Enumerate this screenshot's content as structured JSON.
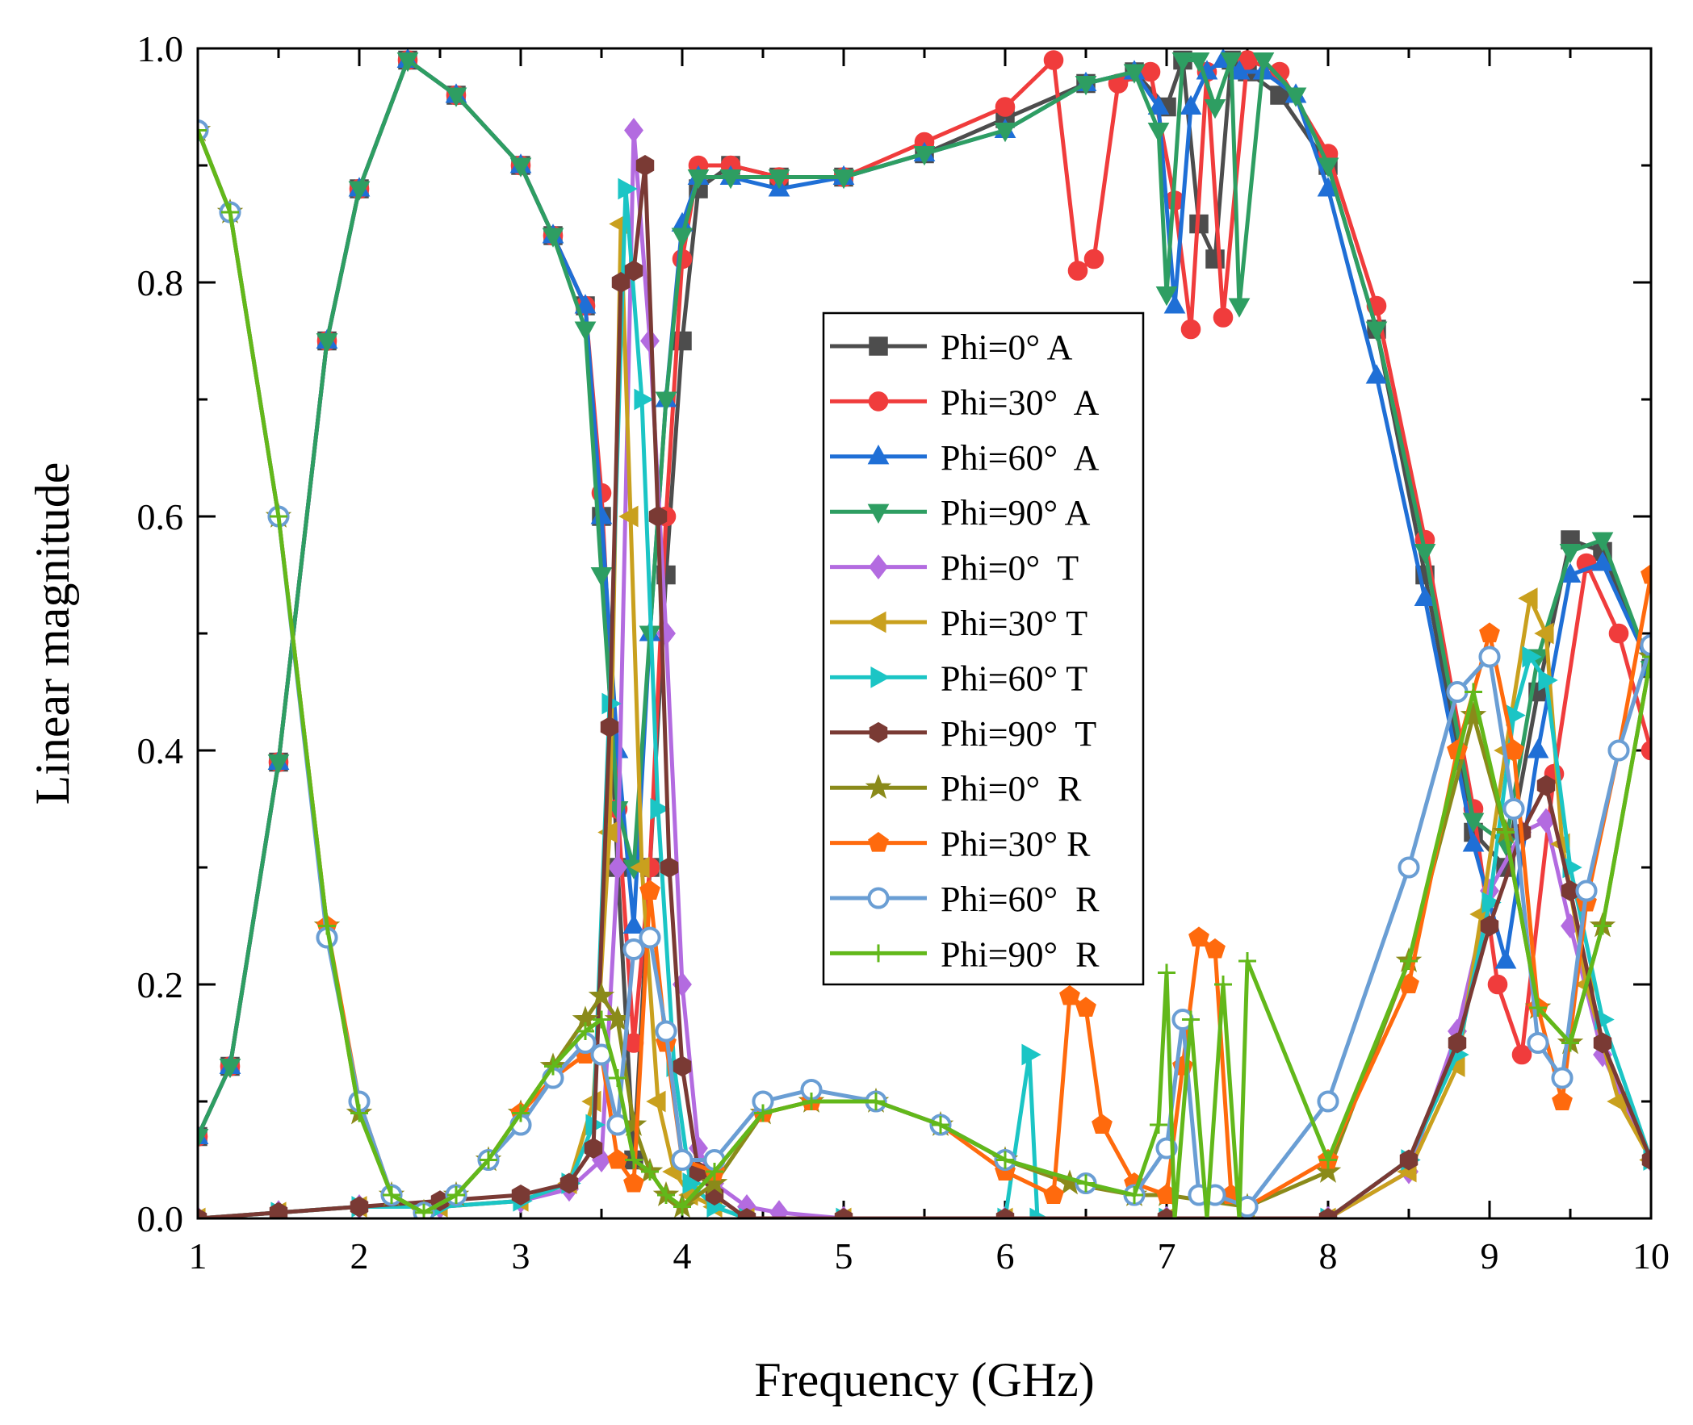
{
  "chart_data": {
    "type": "line",
    "title": "",
    "xlabel": "Frequency (GHz)",
    "ylabel": "Linear magnitude",
    "xlim": [
      1,
      10
    ],
    "ylim": [
      0,
      1.0
    ],
    "xticks": [
      "1",
      "2",
      "3",
      "4",
      "5",
      "6",
      "7",
      "8",
      "9",
      "10"
    ],
    "yticks": [
      "0.0",
      "0.2",
      "0.4",
      "0.6",
      "0.8",
      "1.0"
    ],
    "legend_position": "center",
    "series": [
      {
        "name": "Phi=0° A",
        "color": "#4d4d4d",
        "marker": "square",
        "x": [
          1.0,
          1.2,
          1.5,
          1.8,
          2.0,
          2.3,
          2.6,
          3.0,
          3.2,
          3.4,
          3.5,
          3.6,
          3.7,
          3.8,
          3.9,
          4.0,
          4.1,
          4.3,
          4.6,
          5.0,
          5.5,
          6.0,
          6.5,
          6.8,
          7.0,
          7.1,
          7.2,
          7.3,
          7.4,
          7.5,
          7.7,
          8.0,
          8.3,
          8.6,
          8.9,
          9.1,
          9.3,
          9.5,
          9.7,
          10.0
        ],
        "y": [
          0.07,
          0.13,
          0.39,
          0.75,
          0.88,
          0.99,
          0.96,
          0.9,
          0.84,
          0.78,
          0.6,
          0.3,
          0.05,
          0.3,
          0.55,
          0.75,
          0.88,
          0.9,
          0.89,
          0.89,
          0.91,
          0.94,
          0.97,
          0.98,
          0.95,
          0.99,
          0.85,
          0.82,
          0.99,
          0.98,
          0.96,
          0.9,
          0.76,
          0.55,
          0.33,
          0.3,
          0.45,
          0.58,
          0.57,
          0.47
        ]
      },
      {
        "name": "Phi=30°  A",
        "color": "#f03c3c",
        "marker": "circle",
        "x": [
          1.0,
          1.2,
          1.5,
          1.8,
          2.0,
          2.3,
          2.6,
          3.0,
          3.2,
          3.4,
          3.5,
          3.6,
          3.7,
          3.8,
          3.9,
          4.0,
          4.1,
          4.3,
          4.6,
          5.0,
          5.5,
          6.0,
          6.3,
          6.45,
          6.55,
          6.7,
          6.9,
          7.05,
          7.15,
          7.25,
          7.35,
          7.5,
          7.7,
          8.0,
          8.3,
          8.6,
          8.9,
          9.05,
          9.2,
          9.4,
          9.6,
          9.8,
          10.0
        ],
        "y": [
          0.07,
          0.13,
          0.39,
          0.75,
          0.88,
          0.99,
          0.96,
          0.9,
          0.84,
          0.78,
          0.62,
          0.35,
          0.15,
          0.3,
          0.6,
          0.82,
          0.9,
          0.9,
          0.89,
          0.89,
          0.92,
          0.95,
          0.99,
          0.81,
          0.82,
          0.97,
          0.98,
          0.87,
          0.76,
          0.98,
          0.77,
          0.99,
          0.98,
          0.91,
          0.78,
          0.58,
          0.35,
          0.2,
          0.14,
          0.38,
          0.56,
          0.5,
          0.4
        ]
      },
      {
        "name": "Phi=60°  A",
        "color": "#1f6fd6",
        "marker": "triangle-up",
        "x": [
          1.0,
          1.2,
          1.5,
          1.8,
          2.0,
          2.3,
          2.6,
          3.0,
          3.2,
          3.4,
          3.5,
          3.6,
          3.7,
          3.8,
          3.9,
          4.0,
          4.1,
          4.3,
          4.6,
          5.0,
          5.5,
          6.0,
          6.5,
          6.8,
          6.95,
          7.05,
          7.15,
          7.25,
          7.35,
          7.45,
          7.6,
          7.8,
          8.0,
          8.3,
          8.6,
          8.9,
          9.1,
          9.3,
          9.5,
          9.7,
          10.0
        ],
        "y": [
          0.07,
          0.13,
          0.39,
          0.75,
          0.88,
          0.99,
          0.96,
          0.9,
          0.84,
          0.78,
          0.6,
          0.4,
          0.25,
          0.5,
          0.7,
          0.85,
          0.89,
          0.89,
          0.88,
          0.89,
          0.91,
          0.93,
          0.97,
          0.98,
          0.95,
          0.78,
          0.95,
          0.98,
          0.99,
          0.98,
          0.98,
          0.96,
          0.88,
          0.72,
          0.53,
          0.32,
          0.22,
          0.4,
          0.55,
          0.56,
          0.47
        ]
      },
      {
        "name": "Phi=90° A",
        "color": "#2e9e62",
        "marker": "triangle-down",
        "x": [
          1.0,
          1.2,
          1.5,
          1.8,
          2.0,
          2.3,
          2.6,
          3.0,
          3.2,
          3.4,
          3.5,
          3.6,
          3.7,
          3.8,
          3.9,
          4.0,
          4.1,
          4.3,
          4.6,
          5.0,
          5.5,
          6.0,
          6.5,
          6.8,
          6.95,
          7.0,
          7.1,
          7.2,
          7.3,
          7.4,
          7.45,
          7.6,
          7.8,
          8.0,
          8.3,
          8.6,
          8.9,
          9.1,
          9.3,
          9.5,
          9.7,
          10.0
        ],
        "y": [
          0.07,
          0.13,
          0.39,
          0.75,
          0.88,
          0.99,
          0.96,
          0.9,
          0.84,
          0.76,
          0.55,
          0.35,
          0.3,
          0.5,
          0.7,
          0.84,
          0.89,
          0.89,
          0.89,
          0.89,
          0.91,
          0.93,
          0.97,
          0.98,
          0.93,
          0.79,
          0.99,
          0.99,
          0.95,
          0.99,
          0.78,
          0.99,
          0.96,
          0.9,
          0.76,
          0.57,
          0.34,
          0.32,
          0.48,
          0.57,
          0.58,
          0.47
        ]
      },
      {
        "name": "Phi=0°  T",
        "color": "#b36be0",
        "marker": "diamond",
        "x": [
          1.0,
          1.5,
          2.0,
          2.5,
          3.0,
          3.3,
          3.5,
          3.6,
          3.7,
          3.8,
          3.9,
          4.0,
          4.1,
          4.2,
          4.4,
          4.6,
          5.0,
          6.0,
          7.0,
          8.0,
          8.5,
          8.8,
          9.0,
          9.2,
          9.35,
          9.5,
          9.7,
          10.0
        ],
        "y": [
          0.0,
          0.005,
          0.01,
          0.01,
          0.015,
          0.025,
          0.05,
          0.3,
          0.93,
          0.75,
          0.5,
          0.2,
          0.06,
          0.03,
          0.01,
          0.005,
          0.0,
          0.0,
          0.0,
          0.0,
          0.04,
          0.16,
          0.28,
          0.33,
          0.34,
          0.25,
          0.14,
          0.05
        ]
      },
      {
        "name": "Phi=30° T",
        "color": "#c9a01e",
        "marker": "triangle-left",
        "x": [
          1.0,
          1.5,
          2.0,
          2.5,
          3.0,
          3.3,
          3.45,
          3.55,
          3.62,
          3.68,
          3.75,
          3.85,
          3.95,
          4.05,
          4.2,
          4.4,
          5.0,
          6.0,
          7.0,
          8.0,
          8.5,
          8.8,
          8.95,
          9.1,
          9.25,
          9.35,
          9.45,
          9.6,
          9.8,
          10.0
        ],
        "y": [
          0.0,
          0.005,
          0.01,
          0.01,
          0.015,
          0.03,
          0.1,
          0.33,
          0.85,
          0.6,
          0.3,
          0.1,
          0.04,
          0.02,
          0.01,
          0.0,
          0.0,
          0.0,
          0.0,
          0.0,
          0.04,
          0.13,
          0.26,
          0.4,
          0.53,
          0.5,
          0.32,
          0.2,
          0.1,
          0.05
        ]
      },
      {
        "name": "Phi=60° T",
        "color": "#1bc5c5",
        "marker": "triangle-right",
        "x": [
          1.0,
          1.5,
          2.0,
          2.5,
          3.0,
          3.3,
          3.45,
          3.55,
          3.65,
          3.75,
          3.85,
          3.95,
          4.05,
          4.2,
          4.4,
          5.0,
          6.0,
          6.15,
          6.2,
          7.0,
          8.0,
          8.5,
          8.8,
          9.0,
          9.15,
          9.25,
          9.35,
          9.5,
          9.7,
          10.0
        ],
        "y": [
          0.0,
          0.005,
          0.01,
          0.01,
          0.015,
          0.03,
          0.08,
          0.44,
          0.88,
          0.7,
          0.35,
          0.13,
          0.03,
          0.01,
          0.0,
          0.0,
          0.0,
          0.14,
          0.0,
          0.0,
          0.0,
          0.05,
          0.14,
          0.27,
          0.43,
          0.48,
          0.46,
          0.3,
          0.17,
          0.05
        ]
      },
      {
        "name": "Phi=90°  T",
        "color": "#7a3a34",
        "marker": "hexagon",
        "x": [
          1.0,
          1.5,
          2.0,
          2.5,
          3.0,
          3.3,
          3.45,
          3.55,
          3.62,
          3.7,
          3.77,
          3.85,
          3.92,
          4.0,
          4.1,
          4.2,
          4.4,
          5.0,
          6.0,
          7.0,
          8.0,
          8.5,
          8.8,
          9.0,
          9.2,
          9.35,
          9.5,
          9.7,
          10.0
        ],
        "y": [
          0.0,
          0.005,
          0.01,
          0.015,
          0.02,
          0.03,
          0.06,
          0.42,
          0.8,
          0.81,
          0.9,
          0.6,
          0.3,
          0.13,
          0.04,
          0.02,
          0.0,
          0.0,
          0.0,
          0.0,
          0.0,
          0.05,
          0.15,
          0.25,
          0.33,
          0.37,
          0.28,
          0.15,
          0.05
        ]
      },
      {
        "name": "Phi=0°  R",
        "color": "#8a8a1a",
        "marker": "star",
        "x": [
          1.0,
          1.2,
          1.5,
          1.8,
          2.0,
          2.2,
          2.4,
          2.6,
          2.8,
          3.0,
          3.2,
          3.4,
          3.5,
          3.6,
          3.7,
          3.8,
          3.9,
          4.0,
          4.2,
          4.5,
          4.8,
          5.2,
          5.6,
          6.0,
          6.4,
          6.8,
          7.0,
          7.5,
          8.0,
          8.5,
          8.9,
          9.1,
          9.3,
          9.5,
          9.7,
          10.0
        ],
        "y": [
          0.93,
          0.86,
          0.6,
          0.25,
          0.09,
          0.02,
          0.005,
          0.02,
          0.05,
          0.09,
          0.13,
          0.17,
          0.19,
          0.17,
          0.08,
          0.04,
          0.02,
          0.01,
          0.03,
          0.09,
          0.1,
          0.1,
          0.08,
          0.05,
          0.03,
          0.02,
          0.02,
          0.01,
          0.04,
          0.22,
          0.43,
          0.33,
          0.18,
          0.15,
          0.25,
          0.48
        ]
      },
      {
        "name": "Phi=30° R",
        "color": "#ff6a0d",
        "marker": "pentagon",
        "x": [
          1.0,
          1.2,
          1.5,
          1.8,
          2.0,
          2.2,
          2.4,
          2.6,
          2.8,
          3.0,
          3.2,
          3.4,
          3.5,
          3.6,
          3.7,
          3.8,
          3.9,
          4.0,
          4.2,
          4.5,
          4.8,
          5.2,
          5.6,
          6.0,
          6.3,
          6.4,
          6.5,
          6.6,
          6.8,
          7.0,
          7.1,
          7.2,
          7.3,
          7.4,
          7.5,
          8.0,
          8.5,
          8.8,
          9.0,
          9.15,
          9.3,
          9.45,
          9.6,
          9.8,
          10.0
        ],
        "y": [
          0.93,
          0.86,
          0.6,
          0.25,
          0.1,
          0.02,
          0.005,
          0.02,
          0.05,
          0.09,
          0.12,
          0.14,
          0.14,
          0.05,
          0.03,
          0.28,
          0.15,
          0.05,
          0.04,
          0.09,
          0.1,
          0.1,
          0.08,
          0.04,
          0.02,
          0.19,
          0.18,
          0.08,
          0.03,
          0.02,
          0.13,
          0.24,
          0.23,
          0.02,
          0.01,
          0.05,
          0.2,
          0.4,
          0.5,
          0.4,
          0.18,
          0.1,
          0.27,
          0.4,
          0.55
        ]
      },
      {
        "name": "Phi=60°  R",
        "color": "#6a9ed4",
        "marker": "circle-open",
        "x": [
          1.0,
          1.2,
          1.5,
          1.8,
          2.0,
          2.2,
          2.4,
          2.6,
          2.8,
          3.0,
          3.2,
          3.4,
          3.5,
          3.6,
          3.7,
          3.8,
          3.9,
          4.0,
          4.2,
          4.5,
          4.8,
          5.2,
          5.6,
          6.0,
          6.5,
          6.8,
          7.0,
          7.1,
          7.2,
          7.3,
          7.5,
          8.0,
          8.5,
          8.8,
          9.0,
          9.15,
          9.3,
          9.45,
          9.6,
          9.8,
          10.0
        ],
        "y": [
          0.93,
          0.86,
          0.6,
          0.24,
          0.1,
          0.02,
          0.005,
          0.02,
          0.05,
          0.08,
          0.12,
          0.15,
          0.14,
          0.08,
          0.23,
          0.24,
          0.16,
          0.05,
          0.05,
          0.1,
          0.11,
          0.1,
          0.08,
          0.05,
          0.03,
          0.02,
          0.06,
          0.17,
          0.02,
          0.02,
          0.01,
          0.1,
          0.3,
          0.45,
          0.48,
          0.35,
          0.15,
          0.12,
          0.28,
          0.4,
          0.49
        ]
      },
      {
        "name": "Phi=90°  R",
        "color": "#62b81a",
        "marker": "plus",
        "x": [
          1.0,
          1.2,
          1.5,
          1.8,
          2.0,
          2.2,
          2.4,
          2.6,
          2.8,
          3.0,
          3.2,
          3.4,
          3.5,
          3.6,
          3.7,
          3.8,
          3.9,
          4.0,
          4.2,
          4.5,
          4.8,
          5.2,
          5.6,
          6.0,
          6.5,
          6.8,
          6.95,
          7.0,
          7.05,
          7.15,
          7.25,
          7.35,
          7.45,
          7.5,
          8.0,
          8.5,
          8.9,
          9.1,
          9.3,
          9.5,
          9.7,
          10.0
        ],
        "y": [
          0.93,
          0.86,
          0.6,
          0.25,
          0.09,
          0.02,
          0.005,
          0.02,
          0.05,
          0.09,
          0.13,
          0.16,
          0.17,
          0.12,
          0.05,
          0.04,
          0.02,
          0.01,
          0.04,
          0.09,
          0.1,
          0.1,
          0.08,
          0.05,
          0.03,
          0.02,
          0.08,
          0.21,
          0.0,
          0.17,
          0.0,
          0.2,
          0.0,
          0.22,
          0.05,
          0.22,
          0.45,
          0.33,
          0.18,
          0.15,
          0.25,
          0.48
        ]
      }
    ]
  }
}
